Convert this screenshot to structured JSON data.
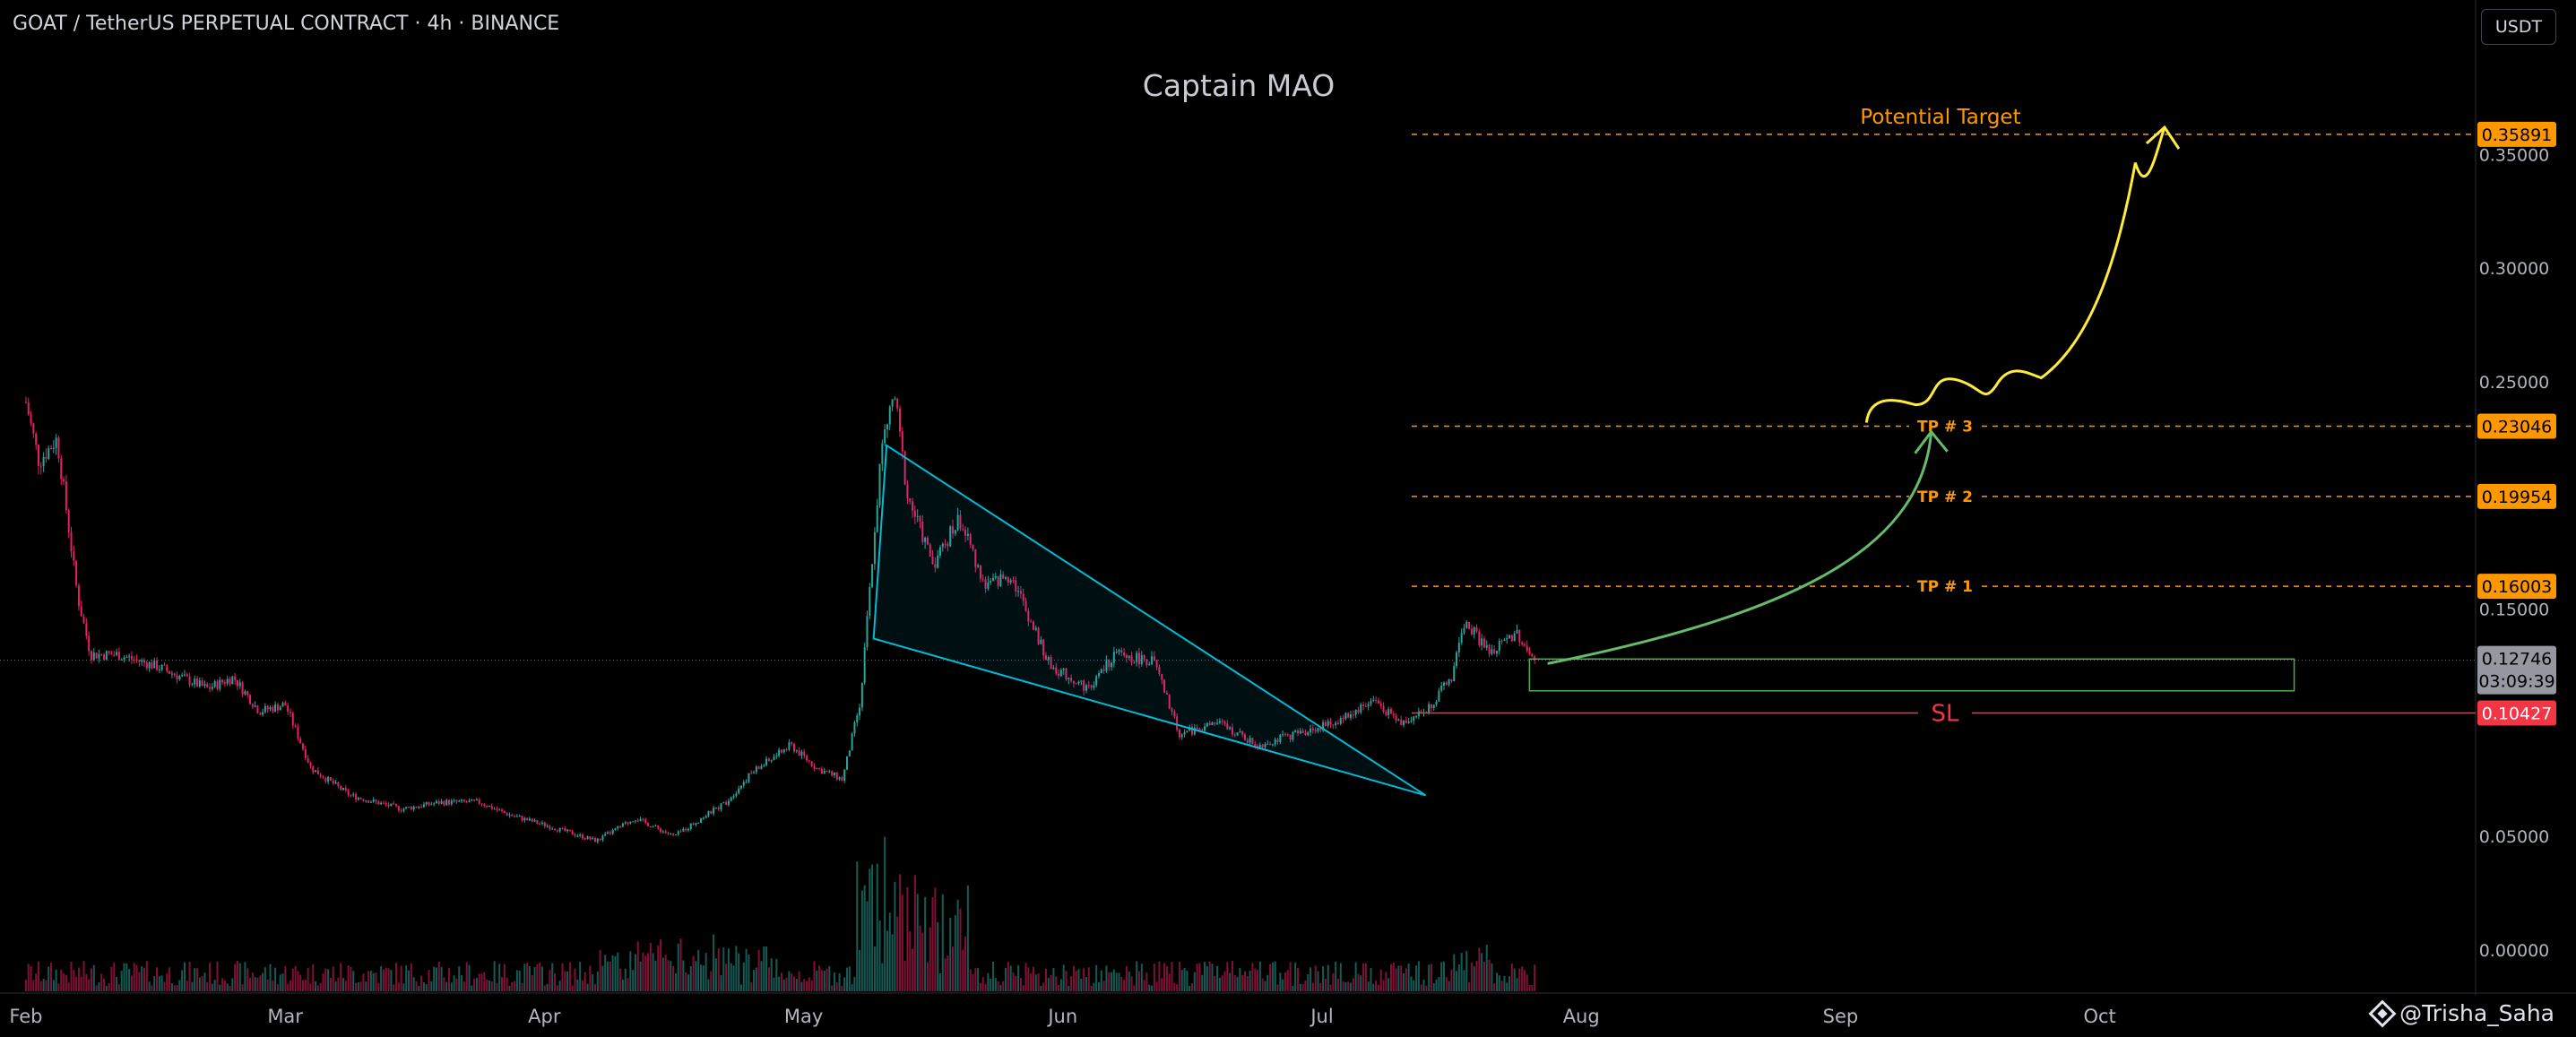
{
  "header": {
    "symbol_title": "GOAT / TetherUS PERPETUAL CONTRACT · 4h · BINANCE",
    "currency_button": "USDT"
  },
  "watermark": "Captain MAO",
  "author": "@Trisha_Saha",
  "author_icon": "tradingview-diamond-icon",
  "colors": {
    "background": "#000000",
    "candle_up": "#26a69a",
    "candle_down": "#e91e63",
    "wedge": "#00bcd4",
    "target_line": "#ff9800",
    "stop_loss": "#f23645",
    "green_arrow": "#66bb6a",
    "yellow_arrow": "#ffeb3b",
    "entry_box": "#4caf50",
    "current_price": "#9598a1"
  },
  "annotations": {
    "potential_target": "Potential Target",
    "tp1": "TP # 1",
    "tp2": "TP # 2",
    "tp3": "TP # 3",
    "sl": "SL"
  },
  "price_badges": {
    "target": "0.35891",
    "tp3": "0.23046",
    "tp2": "0.19954",
    "tp1": "0.16003",
    "current": "0.12746",
    "countdown": "03:09:39",
    "sl": "0.10427"
  },
  "chart_data": {
    "type": "candlestick",
    "symbol": "GOAT / TetherUS PERPETUAL CONTRACT",
    "interval": "4h",
    "exchange": "BINANCE",
    "x_tick_labels": [
      "Feb",
      "Mar",
      "Apr",
      "May",
      "Jun",
      "Jul",
      "Aug",
      "Sep",
      "Oct"
    ],
    "y_tick_labels": [
      "0.35000",
      "0.30000",
      "0.25000",
      "0.15000",
      "0.05000",
      "0.00000"
    ],
    "y_ticks": [
      0.35,
      0.3,
      0.25,
      0.15,
      0.05,
      0.0
    ],
    "ylim": [
      -0.019,
      0.418
    ],
    "xlim": [
      -0.1,
      9.45
    ],
    "price_path": [
      [
        0.0,
        0.241
      ],
      [
        0.05,
        0.215
      ],
      [
        0.12,
        0.225
      ],
      [
        0.2,
        0.155
      ],
      [
        0.25,
        0.13
      ],
      [
        0.35,
        0.13
      ],
      [
        0.5,
        0.125
      ],
      [
        0.7,
        0.115
      ],
      [
        0.8,
        0.12
      ],
      [
        0.9,
        0.105
      ],
      [
        1.0,
        0.108
      ],
      [
        1.1,
        0.08
      ],
      [
        1.25,
        0.068
      ],
      [
        1.45,
        0.062
      ],
      [
        1.6,
        0.065
      ],
      [
        1.75,
        0.065
      ],
      [
        1.85,
        0.06
      ],
      [
        2.0,
        0.055
      ],
      [
        2.2,
        0.048
      ],
      [
        2.35,
        0.058
      ],
      [
        2.5,
        0.05
      ],
      [
        2.7,
        0.065
      ],
      [
        2.8,
        0.078
      ],
      [
        2.95,
        0.09
      ],
      [
        3.05,
        0.08
      ],
      [
        3.15,
        0.075
      ],
      [
        3.22,
        0.11
      ],
      [
        3.3,
        0.22
      ],
      [
        3.35,
        0.245
      ],
      [
        3.4,
        0.2
      ],
      [
        3.5,
        0.17
      ],
      [
        3.6,
        0.19
      ],
      [
        3.7,
        0.16
      ],
      [
        3.8,
        0.165
      ],
      [
        3.95,
        0.125
      ],
      [
        4.1,
        0.115
      ],
      [
        4.2,
        0.13
      ],
      [
        4.35,
        0.127
      ],
      [
        4.45,
        0.095
      ],
      [
        4.6,
        0.1
      ],
      [
        4.75,
        0.09
      ],
      [
        4.9,
        0.095
      ],
      [
        5.05,
        0.1
      ],
      [
        5.2,
        0.11
      ],
      [
        5.3,
        0.1
      ],
      [
        5.4,
        0.105
      ],
      [
        5.5,
        0.12
      ],
      [
        5.55,
        0.145
      ],
      [
        5.65,
        0.13
      ],
      [
        5.75,
        0.14
      ],
      [
        5.82,
        0.127
      ]
    ],
    "falling_wedge": {
      "upper": [
        [
          3.32,
          0.222
        ],
        [
          5.4,
          0.068
        ]
      ],
      "lower": [
        [
          3.27,
          0.137
        ],
        [
          5.4,
          0.068
        ]
      ]
    },
    "horizontal_levels": [
      {
        "label": "Potential Target",
        "value": 0.35891
      },
      {
        "label": "TP # 3",
        "value": 0.23046
      },
      {
        "label": "TP # 2",
        "value": 0.19954
      },
      {
        "label": "TP # 1",
        "value": 0.16003
      },
      {
        "label": "SL",
        "value": 0.10427
      }
    ],
    "current_price": 0.12746,
    "entry_zone": {
      "x": [
        5.8,
        8.75
      ],
      "y": [
        0.114,
        0.128
      ]
    },
    "projection_arrows": [
      {
        "color": "green",
        "from": [
          5.87,
          0.126
        ],
        "to": [
          7.35,
          0.228
        ]
      },
      {
        "color": "yellow",
        "from": [
          7.1,
          0.232
        ],
        "to": [
          8.25,
          0.362
        ]
      }
    ],
    "volume": "per-candle histogram along the bottom, larger spikes in early May and early June",
    "grid": false,
    "legend": "none"
  }
}
